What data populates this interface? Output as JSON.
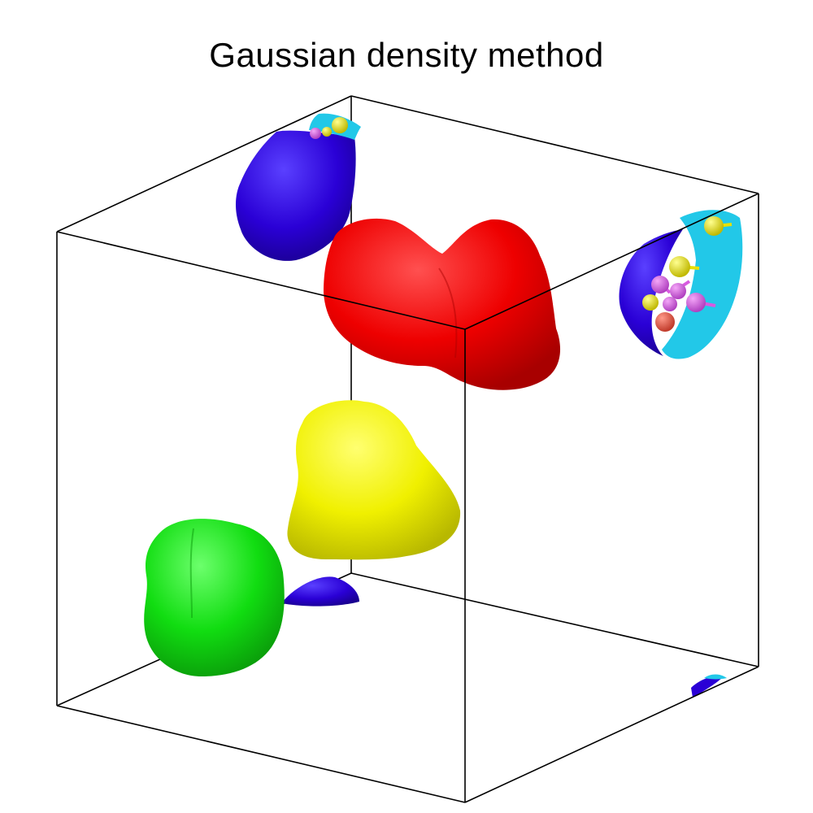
{
  "title": "Gaussian density method",
  "colors": {
    "background": "#ffffff",
    "box_edges": "#000000",
    "red_blob": "#ee0000",
    "yellow_blob": "#f2f200",
    "green_blob": "#11dd11",
    "blue_surface": "#2a00d6",
    "cyan_surface": "#22c8e8",
    "atom_yellow": "#e8e000",
    "atom_magenta": "#d85ae0",
    "atom_salmon": "#e05a4a"
  },
  "scene": {
    "view": "3d-perspective-box",
    "surfaces": [
      "red",
      "yellow",
      "green",
      "blue",
      "cyan"
    ]
  }
}
